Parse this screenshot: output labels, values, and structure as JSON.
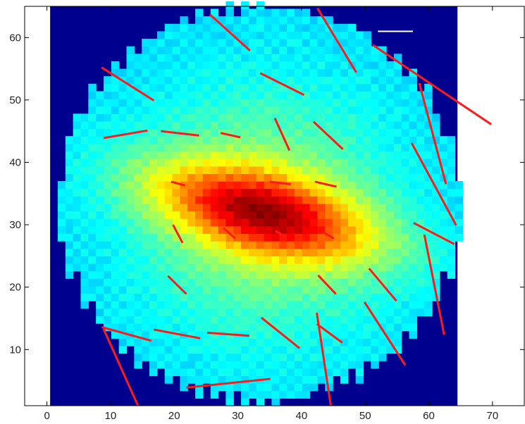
{
  "chart_data": {
    "type": "heatmap",
    "title": "",
    "xlabel": "",
    "ylabel": "",
    "xlim": [
      -3.5,
      75
    ],
    "ylim": [
      1,
      65
    ],
    "xticks": [
      0,
      10,
      20,
      30,
      40,
      50,
      60,
      70
    ],
    "yticks": [
      10,
      20,
      30,
      40,
      50,
      60
    ],
    "image_extent": {
      "x": [
        0.5,
        64.5
      ],
      "y": [
        1,
        65
      ]
    },
    "colormap": "jet",
    "background_color": "#00008f",
    "vector_color": "#ff1a1a",
    "reference_bar_color": "#ffffff",
    "intensity_model": {
      "disk_center": [
        33.5,
        33.5
      ],
      "disk_radius": 31.5,
      "core_center": [
        34,
        32
      ],
      "core_angle_deg": -15,
      "core_sigma_major": 13,
      "core_sigma_minor": 4.5,
      "base_level": 0.34,
      "core_amplitude": 0.45,
      "halo_amplitude": 0.2
    },
    "reference_bar": [
      [
        52,
        61
      ],
      [
        57.5,
        61
      ]
    ],
    "vectors": [
      [
        [
          25.6,
          63.7
        ],
        [
          31.9,
          57.9
        ]
      ],
      [
        [
          42.5,
          64.7
        ],
        [
          48.6,
          54.4
        ]
      ],
      [
        [
          8.6,
          55.2
        ],
        [
          16.8,
          49.9
        ]
      ],
      [
        [
          33.5,
          54.3
        ],
        [
          40.4,
          50.8
        ]
      ],
      [
        [
          51.2,
          58.8
        ],
        [
          69.8,
          46.1
        ]
      ],
      [
        [
          58.5,
          52.7
        ],
        [
          62.7,
          36.5
        ]
      ],
      [
        [
          8.9,
          43.9
        ],
        [
          15.8,
          45.1
        ]
      ],
      [
        [
          17.9,
          45.0
        ],
        [
          23.9,
          44.3
        ]
      ],
      [
        [
          27.3,
          44.7
        ],
        [
          30.4,
          44.0
        ]
      ],
      [
        [
          35.8,
          47.1
        ],
        [
          38.1,
          41.9
        ]
      ],
      [
        [
          41.9,
          46.5
        ],
        [
          46.5,
          42.1
        ]
      ],
      [
        [
          57.3,
          43.1
        ],
        [
          64.3,
          29.9
        ]
      ],
      [
        [
          19.5,
          36.9
        ],
        [
          21.7,
          36.3
        ]
      ],
      [
        [
          35.0,
          36.9
        ],
        [
          38.3,
          36.5
        ]
      ],
      [
        [
          42.1,
          36.9
        ],
        [
          45.5,
          36.1
        ]
      ],
      [
        [
          19.8,
          30.0
        ],
        [
          21.3,
          27.1
        ]
      ],
      [
        [
          27.7,
          29.5
        ],
        [
          29.6,
          27.8
        ]
      ],
      [
        [
          35.9,
          29.0
        ],
        [
          37.6,
          28.0
        ]
      ],
      [
        [
          43.2,
          28.9
        ],
        [
          45.1,
          27.8
        ]
      ],
      [
        [
          57.6,
          30.3
        ],
        [
          64.0,
          26.9
        ]
      ],
      [
        [
          19.0,
          21.8
        ],
        [
          21.9,
          18.9
        ]
      ],
      [
        [
          42.6,
          21.9
        ],
        [
          45.4,
          18.9
        ]
      ],
      [
        [
          50.6,
          23.0
        ],
        [
          54.9,
          17.8
        ]
      ],
      [
        [
          59.3,
          28.4
        ],
        [
          62.4,
          12.4
        ]
      ],
      [
        [
          49.9,
          17.6
        ],
        [
          56.3,
          7.5
        ]
      ],
      [
        [
          8.6,
          13.6
        ],
        [
          16.4,
          11.4
        ]
      ],
      [
        [
          16.8,
          13.2
        ],
        [
          24.1,
          11.8
        ]
      ],
      [
        [
          25.2,
          12.7
        ],
        [
          31.8,
          12.2
        ]
      ],
      [
        [
          33.7,
          15.1
        ],
        [
          39.7,
          10.2
        ]
      ],
      [
        [
          42.4,
          14.1
        ],
        [
          46.4,
          11.1
        ]
      ],
      [
        [
          8.9,
          13.3
        ],
        [
          14.3,
          1.0
        ]
      ],
      [
        [
          42.4,
          15.9
        ],
        [
          44.6,
          1.0
        ]
      ],
      [
        [
          21.9,
          3.9
        ],
        [
          35.1,
          5.3
        ]
      ]
    ]
  }
}
